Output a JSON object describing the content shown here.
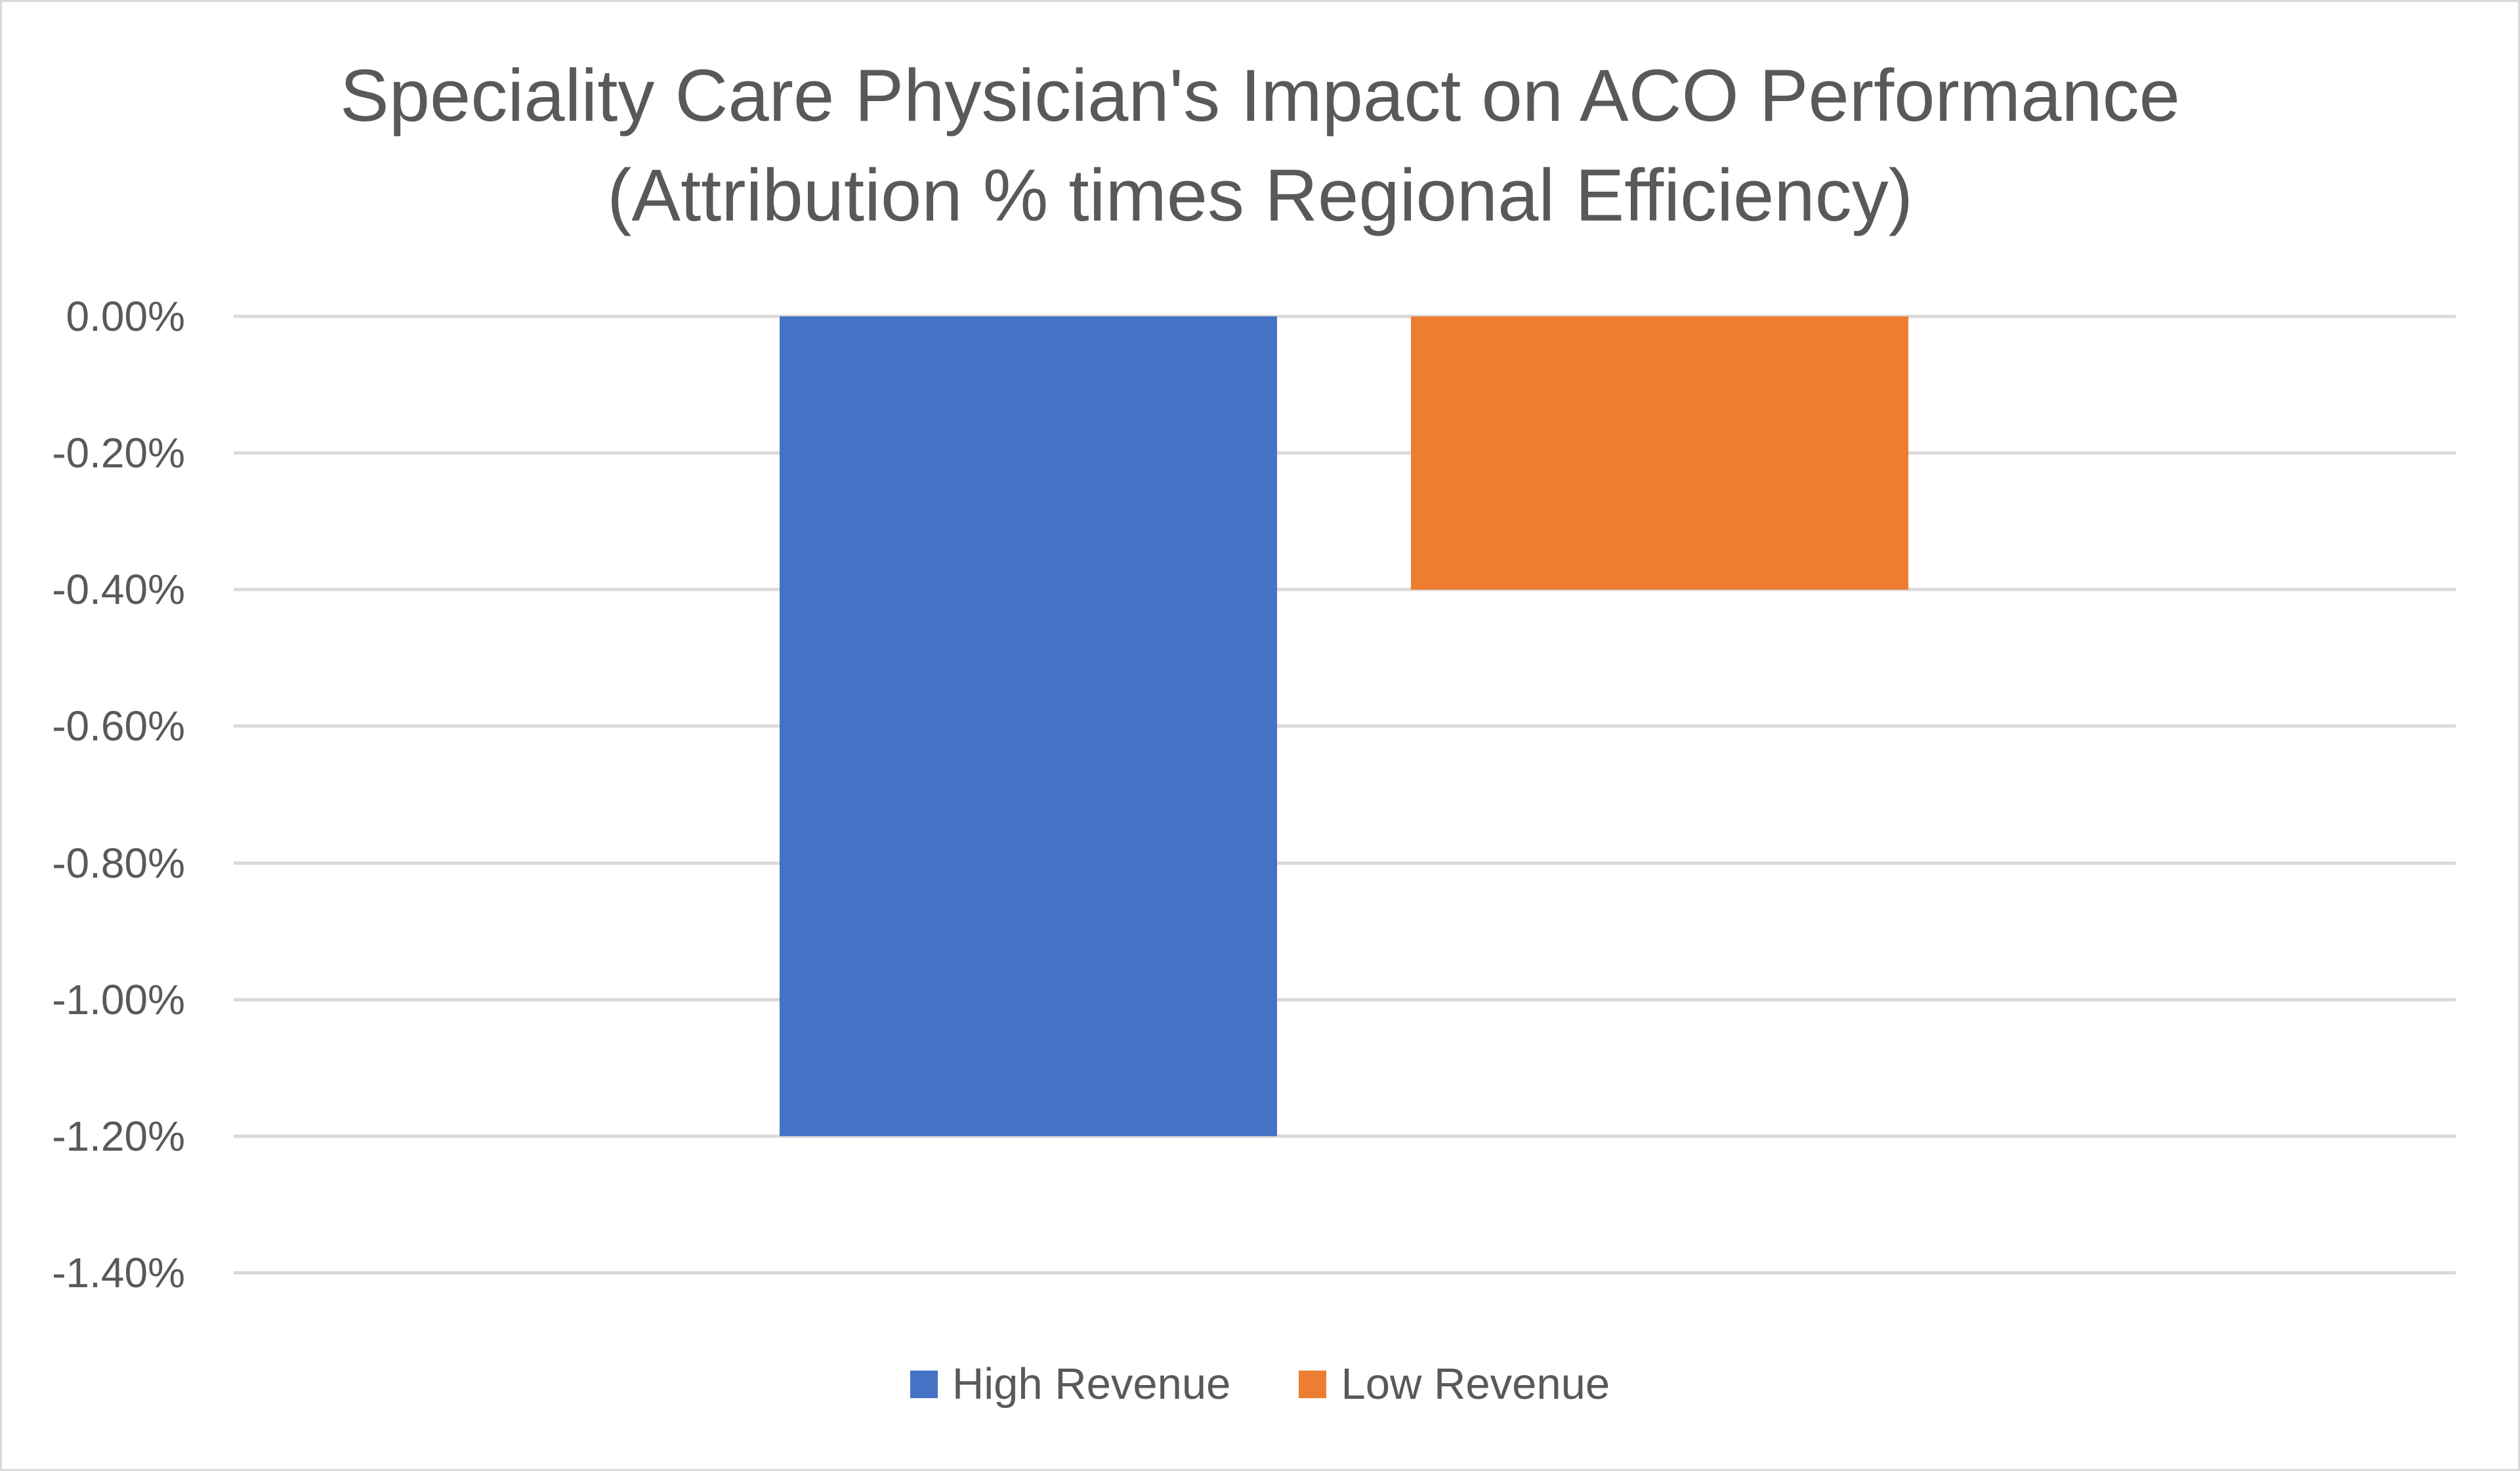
{
  "chart_data": {
    "type": "bar",
    "title": "Speciality Care Physician's Impact on ACO Performance (Attribution % times Regional Efficiency)",
    "title_lines": [
      "Speciality Care Physician's Impact on ACO Performance",
      "(Attribution % times Regional Efficiency)"
    ],
    "categories": [
      ""
    ],
    "series": [
      {
        "name": "High Revenue",
        "values": [
          -1.2
        ],
        "color": "#4472c4"
      },
      {
        "name": "Low Revenue",
        "values": [
          -0.4
        ],
        "color": "#ed7d31"
      }
    ],
    "xlabel": "",
    "ylabel": "",
    "ylim": [
      -1.4,
      0
    ],
    "y_ticks": [
      0,
      -0.2,
      -0.4,
      -0.6,
      -0.8,
      -1.0,
      -1.2,
      -1.4
    ],
    "y_tick_labels": [
      "0.00%",
      "-0.20%",
      "-0.40%",
      "-0.60%",
      "-0.80%",
      "-1.00%",
      "-1.20%",
      "-1.40%"
    ],
    "unit": "%",
    "grid": true,
    "legend_position": "bottom"
  }
}
